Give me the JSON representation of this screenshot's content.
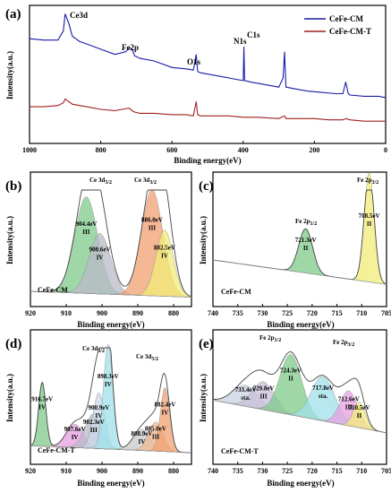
{
  "chart_data": [
    {
      "panel": "(a)",
      "type": "line",
      "xlabel": "Binding energy(eV)",
      "ylabel": "Intensity(a.u.)",
      "xlim": [
        1000,
        0
      ],
      "xticks": [
        "1000",
        "800",
        "600",
        "400",
        "200",
        "0"
      ],
      "legend_position": "top-right",
      "annotations": [
        "Ce3d",
        "Fe2p",
        "O1s",
        "N1s",
        "C1s"
      ],
      "series": [
        {
          "name": "CeFe-CM",
          "color": "#1a1aa6",
          "x": [
            1000,
            960,
            920,
            905,
            900,
            890,
            880,
            860,
            840,
            800,
            760,
            730,
            720,
            712,
            705,
            690,
            650,
            600,
            560,
            540,
            532,
            528,
            520,
            480,
            440,
            420,
            400,
            398,
            396,
            380,
            340,
            300,
            288,
            284,
            280,
            260,
            220,
            180,
            140,
            120,
            112,
            105,
            100,
            60,
            20,
            0
          ],
          "y": [
            0.8,
            0.79,
            0.79,
            0.86,
            0.99,
            0.92,
            0.82,
            0.78,
            0.76,
            0.72,
            0.68,
            0.7,
            0.73,
            0.72,
            0.67,
            0.65,
            0.63,
            0.58,
            0.57,
            0.56,
            0.68,
            0.55,
            0.54,
            0.52,
            0.5,
            0.49,
            0.48,
            0.74,
            0.48,
            0.47,
            0.45,
            0.43,
            0.5,
            0.7,
            0.43,
            0.42,
            0.4,
            0.39,
            0.38,
            0.38,
            0.47,
            0.38,
            0.37,
            0.36,
            0.36,
            0.35
          ]
        },
        {
          "name": "CeFe-CM-T",
          "color": "#a01e1e",
          "x": [
            1000,
            960,
            920,
            905,
            900,
            890,
            880,
            860,
            840,
            800,
            760,
            720,
            712,
            705,
            690,
            650,
            600,
            560,
            540,
            532,
            528,
            520,
            480,
            440,
            400,
            360,
            300,
            284,
            280,
            240,
            200,
            160,
            120,
            112,
            100,
            60,
            20,
            0
          ],
          "y": [
            0.28,
            0.28,
            0.29,
            0.31,
            0.34,
            0.32,
            0.3,
            0.29,
            0.28,
            0.26,
            0.25,
            0.27,
            0.25,
            0.24,
            0.23,
            0.23,
            0.22,
            0.22,
            0.21,
            0.32,
            0.22,
            0.21,
            0.21,
            0.21,
            0.2,
            0.2,
            0.19,
            0.21,
            0.19,
            0.19,
            0.19,
            0.18,
            0.18,
            0.19,
            0.18,
            0.17,
            0.17,
            0.17
          ]
        }
      ]
    },
    {
      "panel": "(b)",
      "type": "line",
      "xlabel": "Binding energy(eV)",
      "ylabel": "Intensity(a.u.)",
      "xlim": [
        920,
        875
      ],
      "xticks": [
        "920",
        "910",
        "900",
        "890",
        "880"
      ],
      "sample": "CeFe-CM",
      "annotations": [
        "Ce 3d5/2",
        "Ce 3d3/2"
      ],
      "peaks": [
        {
          "position_ev": 904.4,
          "label": "904.4eV",
          "component": "III",
          "color": "#7fc98a",
          "height": 0.83,
          "width": 3.2
        },
        {
          "position_ev": 900.6,
          "label": "900.6eV",
          "component": "IV",
          "color": "#b9b9c8",
          "height": 0.52,
          "width": 3.0
        },
        {
          "position_ev": 886.0,
          "label": "886.0eV",
          "component": "III",
          "color": "#f0a070",
          "height": 0.91,
          "width": 3.0
        },
        {
          "position_ev": 882.5,
          "label": "882.5eV",
          "component": "IV",
          "color": "#f2ec7a",
          "height": 0.57,
          "width": 2.4
        }
      ]
    },
    {
      "panel": "(c)",
      "type": "line",
      "xlabel": "Binding energy(eV)",
      "ylabel": "Intensity(a.u.)",
      "xlim": [
        740,
        705
      ],
      "xticks": [
        "740",
        "735",
        "730",
        "725",
        "720",
        "715",
        "710",
        "705"
      ],
      "sample": "CeFe-CM",
      "annotations": [
        "Fe 2p1/2",
        "Fe 2p3/2"
      ],
      "peaks": [
        {
          "position_ev": 721.3,
          "label": "721.3eV",
          "component": "II",
          "color": "#7fc98a",
          "height": 0.38,
          "width": 1.4
        },
        {
          "position_ev": 708.5,
          "label": "708.5eV",
          "component": "II",
          "color": "#f2ec7a",
          "height": 0.94,
          "width": 1.0
        }
      ]
    },
    {
      "panel": "(d)",
      "type": "line",
      "xlabel": "Binding energy(eV)",
      "ylabel": "Intensity(a.u.)",
      "xlim": [
        920,
        875
      ],
      "xticks": [
        "920",
        "910",
        "900",
        "890",
        "880"
      ],
      "sample": "CeFe-CM-T",
      "annotations": [
        "Ce 3d3/2",
        "Ce 3d5/2"
      ],
      "peaks": [
        {
          "position_ev": 916.7,
          "label": "916.7eV",
          "component": "IV",
          "color": "#7fc98a",
          "height": 0.55,
          "width": 1.0
        },
        {
          "position_ev": 907.6,
          "label": "907.6eV",
          "component": "IV",
          "color": "#e6a0e0",
          "height": 0.2,
          "width": 2.4
        },
        {
          "position_ev": 902.3,
          "label": "902.3eV",
          "component": "III",
          "color": "#b9b9c8",
          "height": 0.3,
          "width": 2.4
        },
        {
          "position_ev": 900.9,
          "label": "900.9eV",
          "component": "IV",
          "color": "#c8d8e8",
          "height": 0.48,
          "width": 1.6
        },
        {
          "position_ev": 898.3,
          "label": "898.3eV",
          "component": "IV",
          "color": "#9fe0ea",
          "height": 0.9,
          "width": 1.3
        },
        {
          "position_ev": 888.9,
          "label": "888.9eV",
          "component": "IV",
          "color": "#c8c8c8",
          "height": 0.18,
          "width": 2.4
        },
        {
          "position_ev": 885.0,
          "label": "885.0eV",
          "component": "III",
          "color": "#f0b890",
          "height": 0.25,
          "width": 2.0
        },
        {
          "position_ev": 882.4,
          "label": "882.4eV",
          "component": "IV",
          "color": "#f0a070",
          "height": 0.55,
          "width": 1.3
        }
      ]
    },
    {
      "panel": "(e)",
      "type": "line",
      "xlabel": "Binding energy(eV)",
      "ylabel": "Intensity(a.u.)",
      "xlim": [
        740,
        705
      ],
      "xticks": [
        "740",
        "735",
        "730",
        "725",
        "720",
        "715",
        "710",
        "705"
      ],
      "sample": "CeFe-CM-T",
      "annotations": [
        "Fe 2p1/2",
        "Fe 2p3/2"
      ],
      "peaks": [
        {
          "position_ev": 733.4,
          "label": "733.4eV",
          "component": "sta.",
          "color": "#c8d0e0",
          "height": 0.18,
          "width": 2.6
        },
        {
          "position_ev": 729.8,
          "label": "729.8eV",
          "component": "III",
          "color": "#c8c0d8",
          "height": 0.24,
          "width": 2.2
        },
        {
          "position_ev": 724.3,
          "label": "724.3eV",
          "component": "II",
          "color": "#7fc98a",
          "height": 0.52,
          "width": 2.2
        },
        {
          "position_ev": 717.8,
          "label": "717.8eV",
          "component": "sta.",
          "color": "#9fe0ea",
          "height": 0.38,
          "width": 2.4
        },
        {
          "position_ev": 712.6,
          "label": "712.6eV",
          "component": "III",
          "color": "#e6a0e0",
          "height": 0.3,
          "width": 1.8
        },
        {
          "position_ev": 710.5,
          "label": "710.5eV",
          "component": "II",
          "color": "#f2ec7a",
          "height": 0.22,
          "width": 1.2
        }
      ]
    }
  ],
  "labels": {
    "a": "(a)",
    "b": "(b)",
    "c": "(c)",
    "d": "(d)",
    "e": "(e)",
    "ce3d": "Ce3d",
    "fe2p": "Fe2p",
    "o1s": "O1s",
    "n1s": "N1s",
    "c1s": "C1s",
    "cm": "CeFe-CM",
    "cmt": "CeFe-CM-T",
    "xlabel": "Binding energy(eV)",
    "ylabel": "Intensity(a.u.)",
    "ce3d_main": "Ce 3d",
    "sub32": "3/2",
    "sub52": "5/2",
    "fe2p_main": "Fe 2p",
    "sub12": "1/2"
  }
}
